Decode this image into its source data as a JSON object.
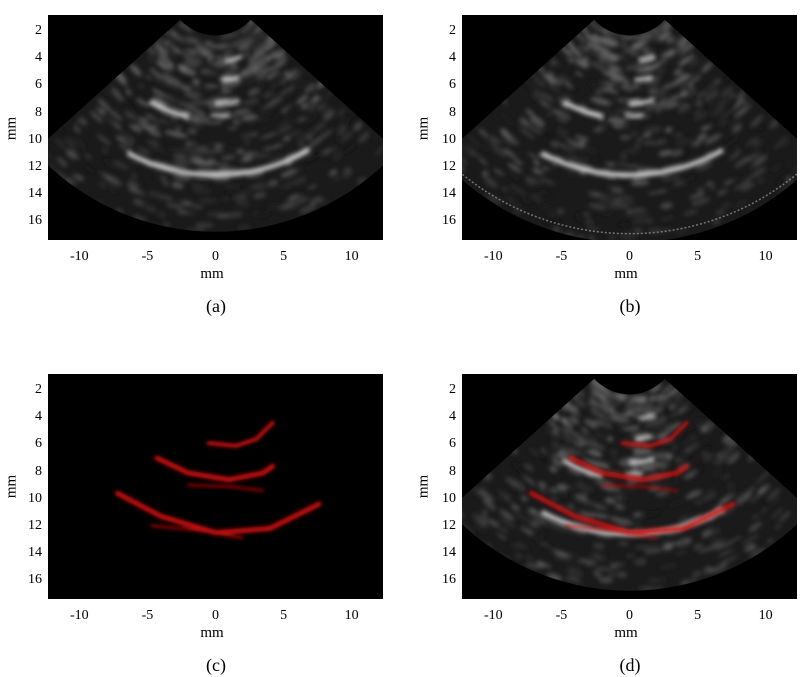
{
  "panels": [
    {
      "id": "a",
      "caption": "(a)",
      "xlabel": "mm",
      "ylabel": "mm",
      "kind": "bmode"
    },
    {
      "id": "b",
      "caption": "(b)",
      "xlabel": "mm",
      "ylabel": "mm",
      "kind": "bmode-full"
    },
    {
      "id": "c",
      "caption": "(c)",
      "xlabel": "mm",
      "ylabel": "mm",
      "kind": "red"
    },
    {
      "id": "d",
      "caption": "(d)",
      "xlabel": "mm",
      "ylabel": "mm",
      "kind": "overlay"
    }
  ],
  "axes": {
    "yticks": [
      "2",
      "4",
      "6",
      "8",
      "10",
      "12",
      "14",
      "16"
    ],
    "xticks": [
      "-10",
      "-5",
      "0",
      "5",
      "10"
    ]
  },
  "colors": {
    "background": "#000000",
    "echo": "#d8d8d8",
    "vessel": "#d01010"
  }
}
